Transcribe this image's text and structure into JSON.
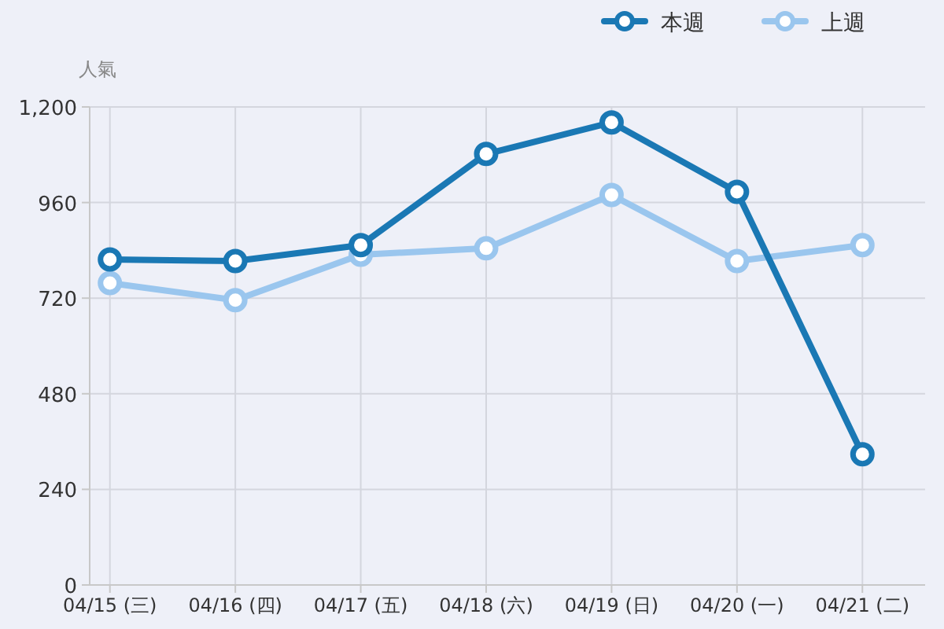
{
  "chart_data": {
    "type": "line",
    "ylabel": "人氣",
    "categories": [
      "04/15 (三)",
      "04/16 (四)",
      "04/17 (五)",
      "04/18 (六)",
      "04/19 (日)",
      "04/20 (一)",
      "04/21 (二)"
    ],
    "series": [
      {
        "name": "本週",
        "color": "#1a78b4",
        "values": [
          817,
          813,
          853,
          1082,
          1161,
          987,
          328
        ]
      },
      {
        "name": "上週",
        "color": "#9ac6ee",
        "values": [
          758,
          715,
          829,
          845,
          979,
          813,
          853
        ]
      }
    ],
    "ylim": [
      0,
      1200
    ],
    "yticks": [
      0,
      240,
      480,
      720,
      960,
      {
        "value": 1200,
        "label": "1,200"
      }
    ],
    "grid": true,
    "legend": "top right",
    "marker": "circle",
    "line_style": "solid"
  }
}
